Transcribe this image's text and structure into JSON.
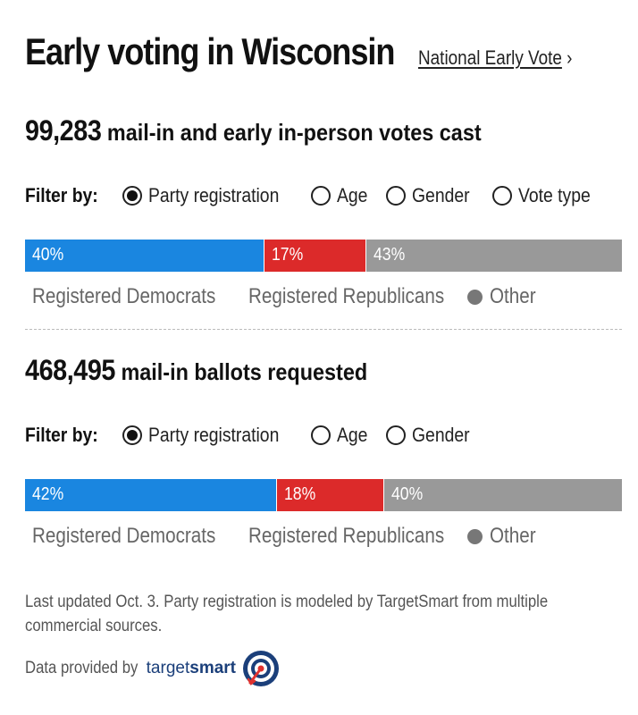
{
  "header": {
    "title": "Early voting in Wisconsin",
    "national_link": "National Early Vote",
    "national_chevron": "›"
  },
  "sections": [
    {
      "count": "99,283",
      "headline": "mail-in and early in-person votes cast",
      "filter_label": "Filter by:",
      "filters": [
        {
          "label": "Party registration",
          "selected": true
        },
        {
          "label": "Age",
          "selected": false
        },
        {
          "label": "Gender",
          "selected": false
        },
        {
          "label": "Vote type",
          "selected": false
        }
      ],
      "bar": [
        {
          "label": "40%",
          "value": 40,
          "color": "#1a86e0"
        },
        {
          "label": "17%",
          "value": 17,
          "color": "#dc2a2a"
        },
        {
          "label": "43%",
          "value": 43,
          "color": "#999999"
        }
      ],
      "legend": [
        {
          "label": "Registered Democrats",
          "color": "#1a86e0"
        },
        {
          "label": "Registered Republicans",
          "color": "#dc2a2a"
        },
        {
          "label": "Other",
          "color": "#777777"
        }
      ]
    },
    {
      "count": "468,495",
      "headline": "mail-in ballots requested",
      "filter_label": "Filter by:",
      "filters": [
        {
          "label": "Party registration",
          "selected": true
        },
        {
          "label": "Age",
          "selected": false
        },
        {
          "label": "Gender",
          "selected": false
        }
      ],
      "bar": [
        {
          "label": "42%",
          "value": 42,
          "color": "#1a86e0"
        },
        {
          "label": "18%",
          "value": 18,
          "color": "#dc2a2a"
        },
        {
          "label": "40%",
          "value": 40,
          "color": "#999999"
        }
      ],
      "legend": [
        {
          "label": "Registered Democrats",
          "color": "#1a86e0"
        },
        {
          "label": "Registered Republicans",
          "color": "#dc2a2a"
        },
        {
          "label": "Other",
          "color": "#777777"
        }
      ]
    }
  ],
  "footer": {
    "note": "Last updated Oct. 3. Party registration is modeled by TargetSmart from multiple commercial sources.",
    "provided_by": "Data provided by",
    "brand_prefix": "target",
    "brand_suffix": "smart",
    "brand_icon": "targetsmart-logo-icon"
  }
}
